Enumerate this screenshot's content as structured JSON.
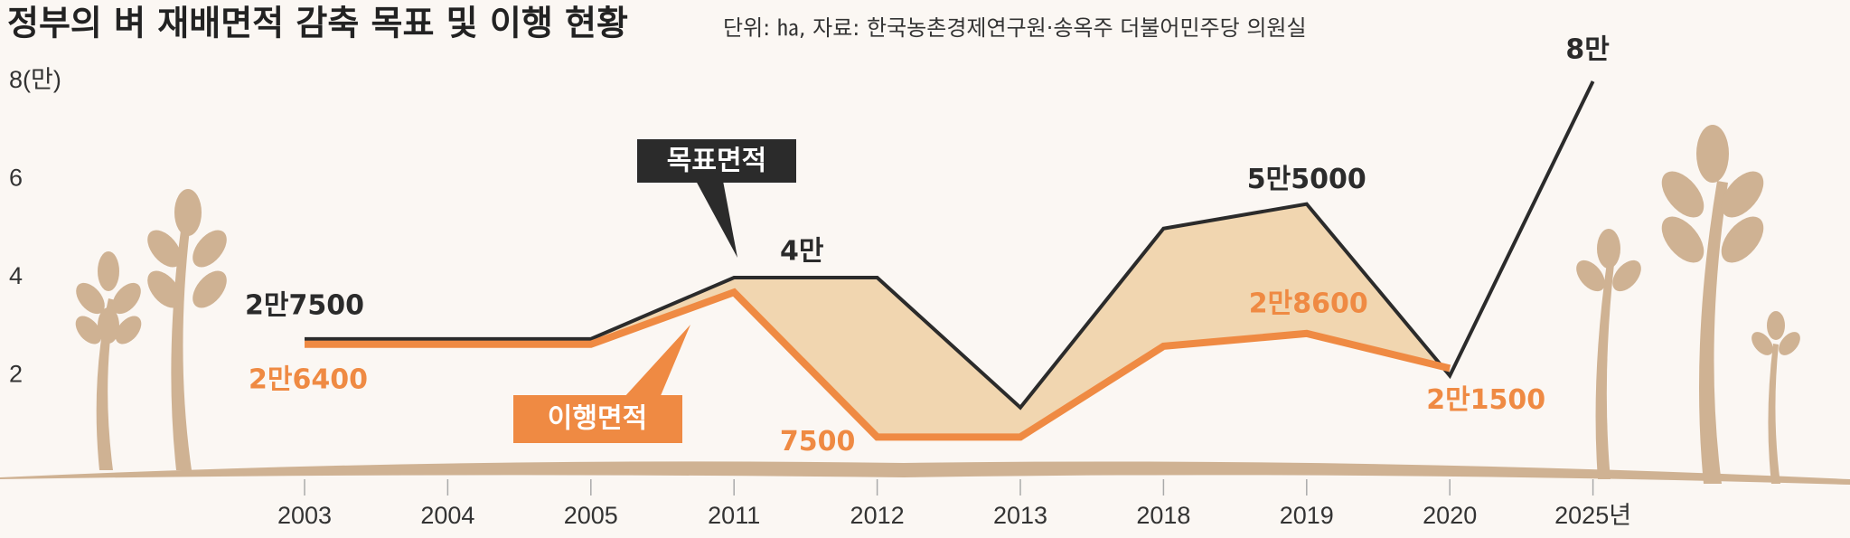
{
  "chart_data": {
    "type": "line",
    "title": "정부의 벼 재배면적 감축 목표 및 이행 현황",
    "subtitle": "단위: ㏊, 자료: 한국농촌경제연구원·송옥주 더불어민주당 의원실",
    "categories": [
      "2003",
      "2004",
      "2005",
      "2011",
      "2012",
      "2013",
      "2018",
      "2019",
      "2020",
      "2025년"
    ],
    "series": [
      {
        "name": "목표면적",
        "color": "#2b2b2b",
        "values": [
          2.75,
          2.75,
          2.75,
          4,
          4,
          1.35,
          5,
          5.5,
          2,
          8
        ],
        "value_labels": [
          "2만7500",
          null,
          null,
          "4만",
          null,
          null,
          null,
          "5만5000",
          null,
          "8만"
        ]
      },
      {
        "name": "이행면적",
        "color": "#ef8a43",
        "values": [
          2.64,
          2.64,
          2.64,
          3.7,
          0.75,
          0.75,
          2.6,
          2.86,
          2.15,
          null
        ],
        "value_labels": [
          "2만6400",
          null,
          null,
          null,
          "7500",
          null,
          null,
          "2만8600",
          "2만1500",
          null
        ]
      }
    ],
    "ylim": [
      0,
      8
    ],
    "yticks": [
      2,
      4,
      6,
      {
        "value": 8,
        "label": "8(만)"
      }
    ]
  }
}
